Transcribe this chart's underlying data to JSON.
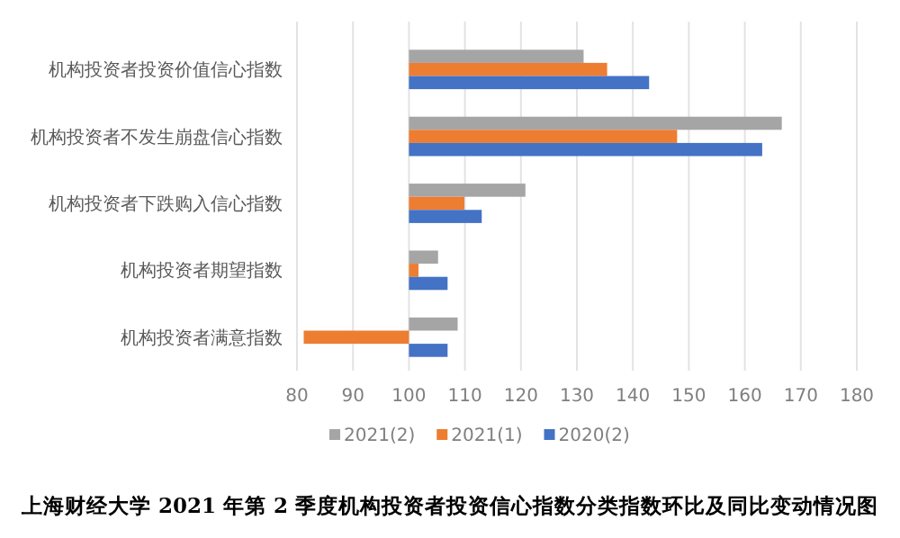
{
  "chart_data": {
    "type": "bar",
    "orientation": "horizontal",
    "title": "上海财经大学 2021 年第 2 季度机构投资者投资信心指数分类指数环比及同比变动情况图",
    "categories": [
      "机构投资者投资价值信心指数",
      "机构投资者不发生崩盘信心指数",
      "机构投资者下跌购入信心指数",
      "机构投资者期望指数",
      "机构投资者满意指数"
    ],
    "series": [
      {
        "name": "2021(2)",
        "color": "#a5a5a5",
        "base": [
          100,
          100,
          100,
          100,
          100
        ],
        "values": [
          31.2,
          66.6,
          20.8,
          5.2,
          8.7
        ]
      },
      {
        "name": "2021(1)",
        "color": "#ed7d31",
        "base": [
          100,
          100,
          100,
          100,
          100
        ],
        "values": [
          35.4,
          47.9,
          9.9,
          1.7,
          -18.8
        ]
      },
      {
        "name": "2020(2)",
        "color": "#4472c4",
        "base": [
          100,
          100,
          100,
          100,
          100
        ],
        "values": [
          42.9,
          63.1,
          13,
          6.9,
          6.9
        ]
      }
    ],
    "xlim": [
      80,
      180
    ],
    "xticks": [
      80,
      90,
      100,
      110,
      120,
      130,
      140,
      150,
      160,
      170,
      180
    ],
    "grid": "x",
    "legend": "bottom"
  }
}
